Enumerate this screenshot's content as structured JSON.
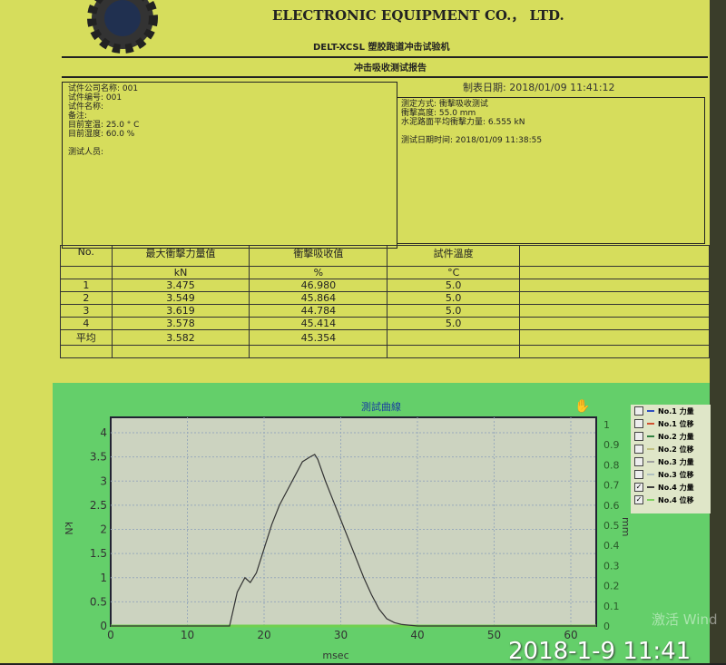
{
  "header": {
    "company": "ELECTRONIC EQUIPMENT CO.， LTD.",
    "machine": "DELT-XCSL 塑胶跑道冲击试验机",
    "report_title": "冲击吸收测试报告",
    "made_date_label": "制表日期:",
    "made_date": "2018/01/09 11:41:12"
  },
  "left_info": [
    "试件公司名称: 001",
    "试件编号: 001",
    "试件名称:",
    "备注:",
    "目前室温: 25.0 ° C",
    "目前湿度: 60.0 %",
    "",
    "测试人员:"
  ],
  "right_info": [
    "测定方式: 衝擊吸收测试",
    "衝擊高度: 55.0 mm",
    "水泥路面平均衝擊力量: 6.555 kN",
    "",
    "测试日期时间: 2018/01/09 11:38:55"
  ],
  "table": {
    "headers": [
      "No.",
      "最大衝擊力量值",
      "衝擊吸收值",
      "試件溫度",
      ""
    ],
    "units": [
      "",
      "kN",
      "%",
      "°C",
      ""
    ],
    "rows": [
      [
        "1",
        "3.475",
        "46.980",
        "5.0",
        ""
      ],
      [
        "2",
        "3.549",
        "45.864",
        "5.0",
        ""
      ],
      [
        "3",
        "3.619",
        "44.784",
        "5.0",
        ""
      ],
      [
        "4",
        "3.578",
        "45.414",
        "5.0",
        ""
      ],
      [
        "平均",
        "3.582",
        "45.354",
        "",
        ""
      ]
    ]
  },
  "legend": [
    {
      "label": "No.1 力量",
      "checked": false,
      "color": "#3050c0"
    },
    {
      "label": "No.1 位移",
      "checked": false,
      "color": "#d05030"
    },
    {
      "label": "No.2 力量",
      "checked": false,
      "color": "#308040"
    },
    {
      "label": "No.2 位移",
      "checked": false,
      "color": "#c0c080"
    },
    {
      "label": "No.3 力量",
      "checked": false,
      "color": "#a0a0a0"
    },
    {
      "label": "No.3 位移",
      "checked": false,
      "color": "#b0c0c0"
    },
    {
      "label": "No.4 力量",
      "checked": true,
      "color": "#404040"
    },
    {
      "label": "No.4 位移",
      "checked": true,
      "color": "#80d060"
    }
  ],
  "check_mark": "✓",
  "timestamp": "2018-1-9 11:41",
  "watermark": "激活 Wind",
  "chart_data": {
    "type": "line",
    "title": "測試曲線",
    "xlabel": "msec",
    "ylabel": "kN",
    "y2label": "mm",
    "xlim": [
      0,
      65
    ],
    "ylim": [
      0,
      4.2
    ],
    "y2lim": [
      0,
      1.05
    ],
    "xticks": [
      0,
      10,
      20,
      30,
      40,
      50,
      60
    ],
    "yticks": [
      0,
      0.5,
      1,
      1.5,
      2,
      2.5,
      3,
      3.5,
      4
    ],
    "y2ticks": [
      0,
      0.1,
      0.2,
      0.3,
      0.4,
      0.5,
      0.6,
      0.7,
      0.8,
      0.9,
      1
    ],
    "grid": true,
    "series": [
      {
        "name": "No.4 力量",
        "color": "#333333",
        "x": [
          0,
          15.5,
          16.5,
          17.5,
          18.2,
          19,
          20,
          21,
          22,
          23,
          24,
          25,
          26,
          26.6,
          27,
          28,
          29,
          30,
          31,
          32,
          33,
          34,
          35,
          36,
          37,
          38,
          40,
          65
        ],
        "y": [
          0,
          0,
          0.7,
          1.0,
          0.9,
          1.1,
          1.6,
          2.1,
          2.5,
          2.8,
          3.1,
          3.4,
          3.5,
          3.55,
          3.45,
          3.0,
          2.6,
          2.2,
          1.8,
          1.4,
          1.0,
          0.65,
          0.35,
          0.15,
          0.07,
          0.03,
          0,
          0
        ]
      },
      {
        "name": "No.4 位移",
        "color": "#70d050",
        "x": [
          0,
          65
        ],
        "y": [
          0,
          0
        ]
      }
    ]
  }
}
